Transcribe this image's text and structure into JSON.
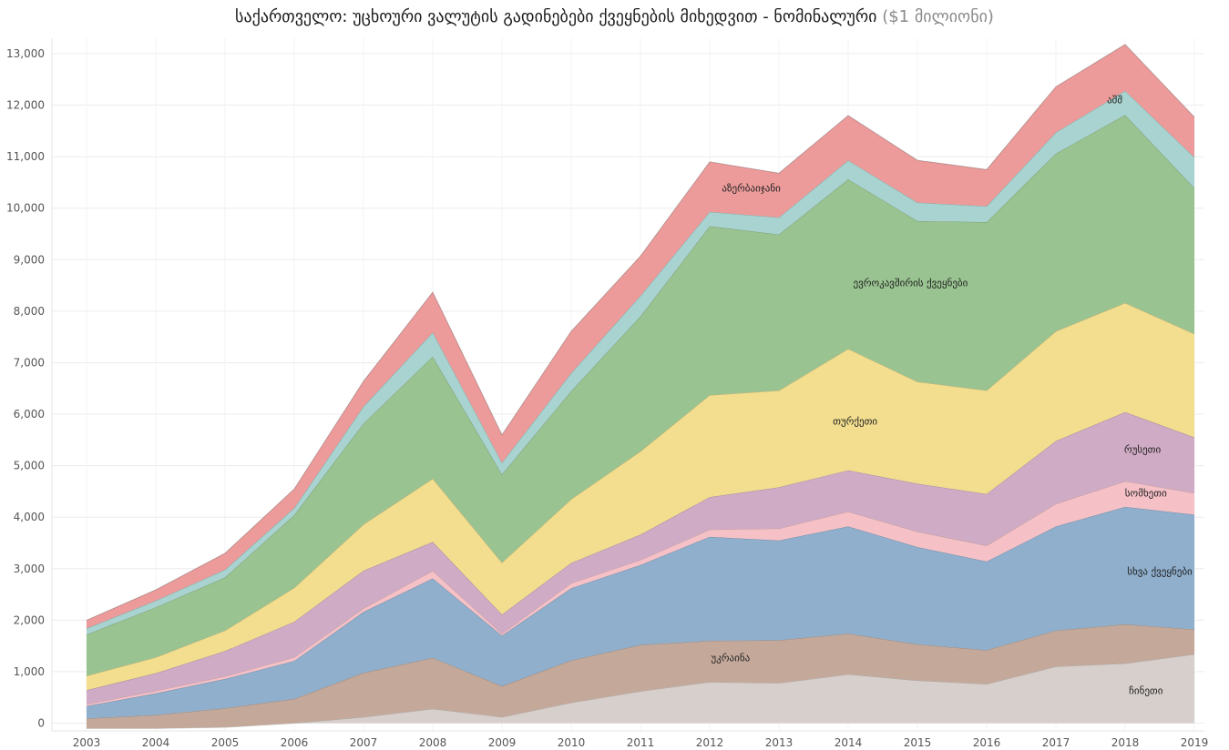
{
  "title_main": "საქართველო: უცხოური ვალუტის გადინებები ქვეყნების მიხედვით - ნომინალური",
  "title_unit": "($1 მილიონი)",
  "chart_data": {
    "type": "area",
    "stacked": true,
    "title": "საქართველო: უცხოური ვალუტის გადინებები ქვეყნების მიხედვით - ნომინალური ($1 მილიონი)",
    "x": [
      "2003",
      "2004",
      "2005",
      "2006",
      "2007",
      "2008",
      "2009",
      "2010",
      "2011",
      "2012",
      "2013",
      "2014",
      "2015",
      "2016",
      "2017",
      "2018",
      "2019"
    ],
    "ylim": [
      -150,
      13300
    ],
    "yticks": [
      0,
      1000,
      2000,
      3000,
      4000,
      5000,
      6000,
      7000,
      8000,
      9000,
      10000,
      11000,
      12000,
      13000
    ],
    "ytick_labels": [
      "0",
      "1,000",
      "2,000",
      "3,000",
      "4,000",
      "5,000",
      "6,000",
      "7,000",
      "8,000",
      "9,000",
      "10,000",
      "11,000",
      "12,000",
      "13,000"
    ],
    "grid": true,
    "series": [
      {
        "name": "ჩინეთი",
        "color": "#d7cfcc",
        "values": [
          -100,
          -100,
          -80,
          0,
          120,
          280,
          120,
          400,
          620,
          800,
          780,
          950,
          830,
          760,
          1100,
          1160,
          1340
        ]
      },
      {
        "name": "უკრაინა",
        "color": "#c4a99a",
        "values": [
          190,
          260,
          370,
          470,
          860,
          990,
          600,
          820,
          900,
          800,
          830,
          790,
          700,
          660,
          700,
          760,
          480
        ]
      },
      {
        "name": "სხვა ქვეყნები",
        "color": "#8fafcd",
        "values": [
          240,
          420,
          570,
          740,
          1180,
          1540,
          980,
          1400,
          1550,
          2020,
          1940,
          2080,
          1890,
          1720,
          2020,
          2280,
          2230
        ]
      },
      {
        "name": "სომხეთი",
        "color": "#f5c1c7",
        "values": [
          40,
          50,
          50,
          70,
          70,
          150,
          40,
          100,
          100,
          140,
          230,
          290,
          300,
          310,
          440,
          500,
          420
        ]
      },
      {
        "name": "რუსეთი",
        "color": "#d0abc5",
        "values": [
          270,
          340,
          490,
          690,
          730,
          560,
          370,
          390,
          490,
          630,
          800,
          800,
          930,
          1000,
          1220,
          1340,
          1080
        ]
      },
      {
        "name": "თურქეთი",
        "color": "#f2de8e",
        "values": [
          280,
          310,
          400,
          660,
          900,
          1230,
          1010,
          1240,
          1620,
          1980,
          1880,
          2360,
          1980,
          2010,
          2130,
          2120,
          2010
        ]
      },
      {
        "name": "ევროკავშირის ქვეყნები",
        "color": "#99c390",
        "values": [
          800,
          970,
          1030,
          1410,
          1960,
          2370,
          1710,
          2100,
          2620,
          3280,
          3030,
          3290,
          3120,
          3270,
          3450,
          3650,
          2830
        ]
      },
      {
        "name": "აშშ",
        "color": "#a8d3d0",
        "values": [
          120,
          130,
          150,
          140,
          330,
          470,
          230,
          350,
          400,
          280,
          330,
          370,
          360,
          310,
          410,
          470,
          600
        ]
      },
      {
        "name": "აზერბაიჯანი",
        "color": "#ec9b9a",
        "values": [
          160,
          210,
          320,
          370,
          490,
          780,
          540,
          810,
          770,
          970,
          860,
          870,
          820,
          710,
          890,
          900,
          780
        ]
      }
    ],
    "labels": [
      {
        "text": "ჩინეთი",
        "x": 2018.3,
        "y": 570
      },
      {
        "text": "უკრაინა",
        "x": 2012.3,
        "y": 1200
      },
      {
        "text": "სხვა ქვეყნები",
        "x": 2018.5,
        "y": 2880
      },
      {
        "text": "სომხეთი",
        "x": 2018.3,
        "y": 4400
      },
      {
        "text": "რუსეთი",
        "x": 2018.25,
        "y": 5250
      },
      {
        "text": "თურქეთი",
        "x": 2014.1,
        "y": 5800
      },
      {
        "text": "ევროკავშირის ქვეყნები",
        "x": 2014.9,
        "y": 8480
      },
      {
        "text": "აშშ",
        "x": 2017.85,
        "y": 12040
      },
      {
        "text": "აზერბაიჯანი",
        "x": 2012.6,
        "y": 10320
      }
    ]
  }
}
